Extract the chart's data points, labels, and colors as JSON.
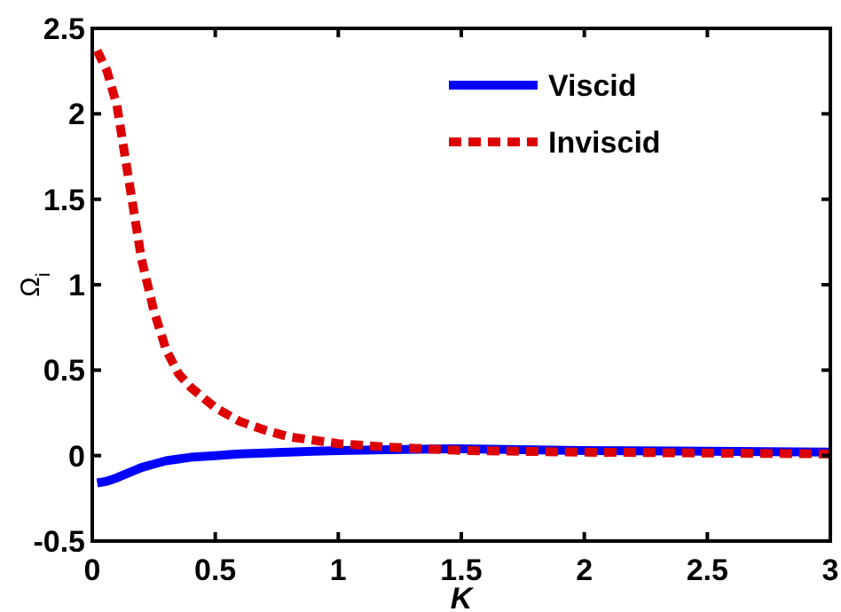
{
  "chart_data": {
    "type": "line",
    "xlabel": "K",
    "ylabel": "Ω$_{i}$",
    "xlim": [
      0,
      3
    ],
    "ylim": [
      -0.5,
      2.5
    ],
    "xticks": [
      0,
      0.5,
      1,
      1.5,
      2,
      2.5,
      3
    ],
    "yticks": [
      -0.5,
      0,
      0.5,
      1,
      1.5,
      2,
      2.5
    ],
    "legend": "top right",
    "grid": false,
    "x": [
      0.02,
      0.06,
      0.1,
      0.15,
      0.2,
      0.25,
      0.3,
      0.35,
      0.4,
      0.5,
      0.6,
      0.7,
      0.8,
      0.9,
      1.0,
      1.2,
      1.5,
      1.75,
      2,
      2.5,
      3
    ],
    "series": [
      {
        "name": "Viscid",
        "color": "#0000ff",
        "line_style": "solid",
        "values": [
          -0.16,
          -0.15,
          -0.13,
          -0.1,
          -0.07,
          -0.05,
          -0.03,
          -0.02,
          -0.01,
          0,
          0.01,
          0.015,
          0.02,
          0.025,
          0.03,
          0.035,
          0.04,
          0.035,
          0.03,
          0.025,
          0.02
        ]
      },
      {
        "name": "Inviscid",
        "color": "#dd0000",
        "line_style": "dashed",
        "values": [
          2.37,
          2.25,
          2.05,
          1.6,
          1.15,
          0.85,
          0.62,
          0.48,
          0.4,
          0.28,
          0.2,
          0.15,
          0.11,
          0.09,
          0.07,
          0.05,
          0.03,
          0.025,
          0.02,
          0.015,
          0.01
        ]
      }
    ]
  }
}
